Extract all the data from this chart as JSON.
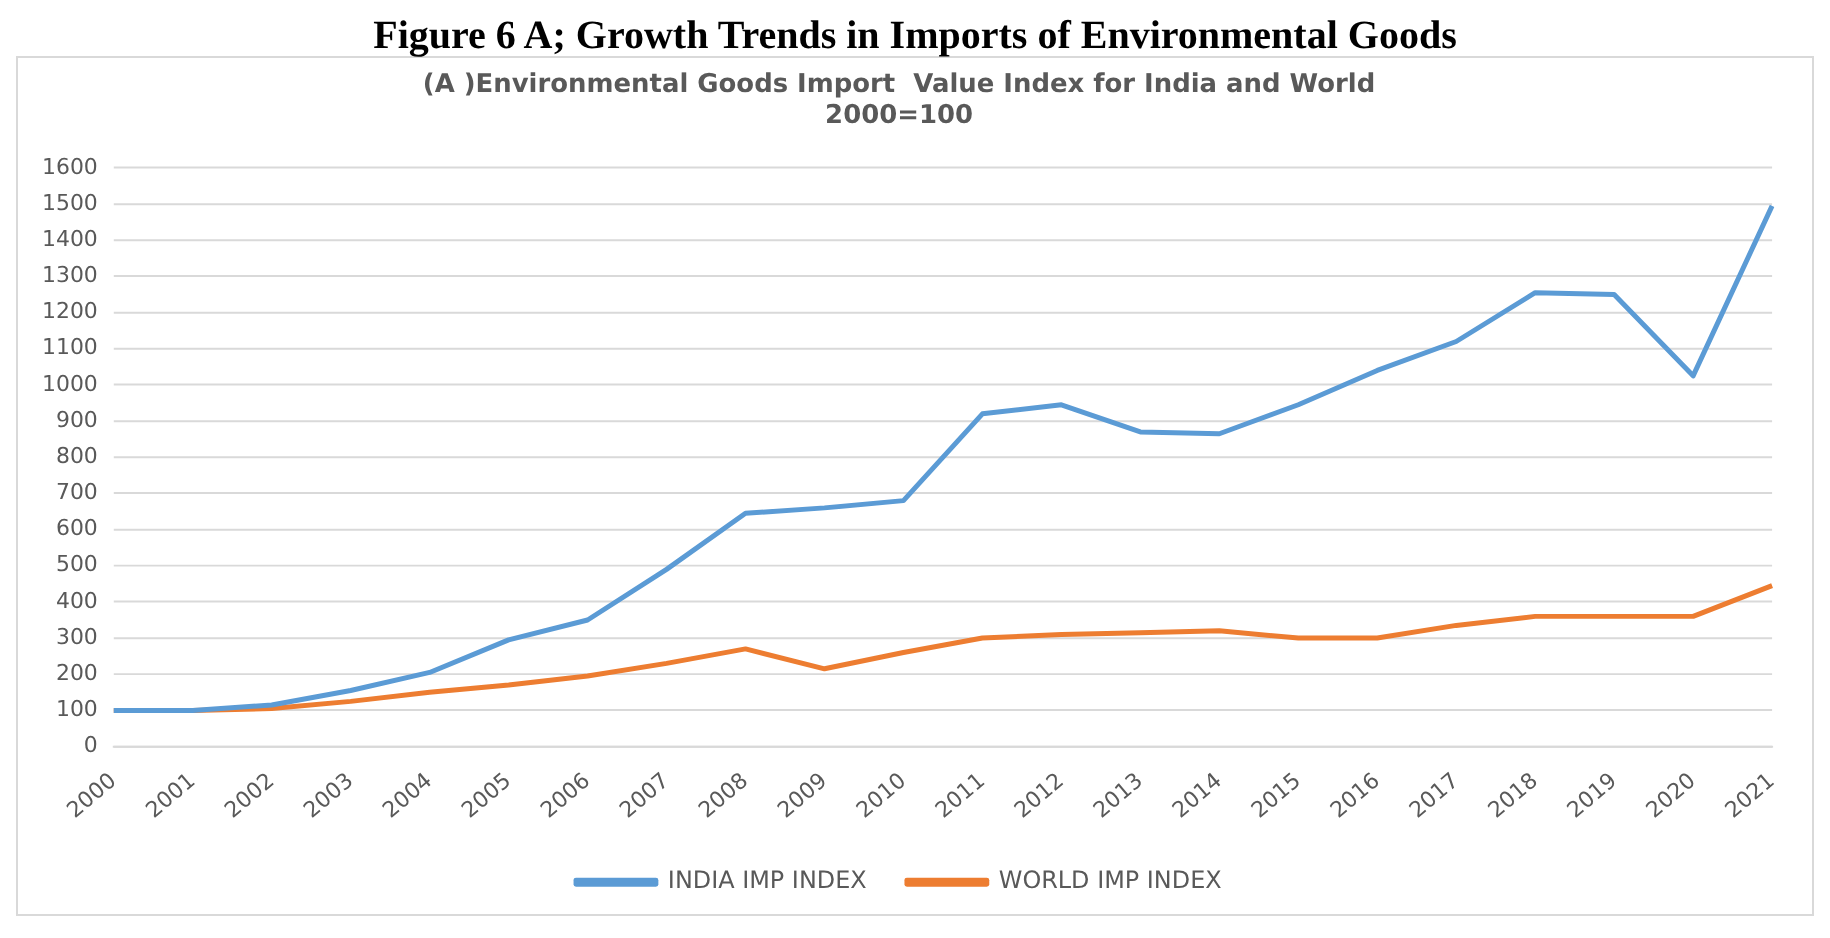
{
  "chart_data": {
    "type": "line",
    "title": "(A )Environmental Goods Import  Value Index for India and World",
    "subtitle": "2000=100",
    "annotations": [
      "Figure 6 A; Growth Trends in Imports of Environmental Goods"
    ],
    "categories": [
      "2000",
      "2001",
      "2002",
      "2003",
      "2004",
      "2005",
      "2006",
      "2007",
      "2008",
      "2009",
      "2010",
      "2011",
      "2012",
      "2013",
      "2014",
      "2015",
      "2016",
      "2017",
      "2018",
      "2019",
      "2020",
      "2021"
    ],
    "series": [
      {
        "name": "INDIA IMP INDEX",
        "color": "#5b9bd5",
        "values": [
          100,
          100,
          115,
          155,
          205,
          295,
          350,
          490,
          645,
          660,
          680,
          920,
          945,
          870,
          865,
          945,
          1040,
          1120,
          1255,
          1250,
          1025,
          1495
        ]
      },
      {
        "name": "WORLD IMP INDEX",
        "color": "#ed7d31",
        "values": [
          100,
          100,
          105,
          125,
          150,
          170,
          195,
          230,
          270,
          215,
          260,
          300,
          310,
          315,
          320,
          300,
          300,
          335,
          360,
          360,
          360,
          445
        ]
      }
    ],
    "ylim": [
      0,
      1600
    ],
    "yticks": [
      0,
      100,
      200,
      300,
      400,
      500,
      600,
      700,
      800,
      900,
      1000,
      1100,
      1200,
      1300,
      1400,
      1500,
      1600
    ],
    "grid": "y",
    "legend": "bottom",
    "marker": "none",
    "line_style": "solid"
  }
}
